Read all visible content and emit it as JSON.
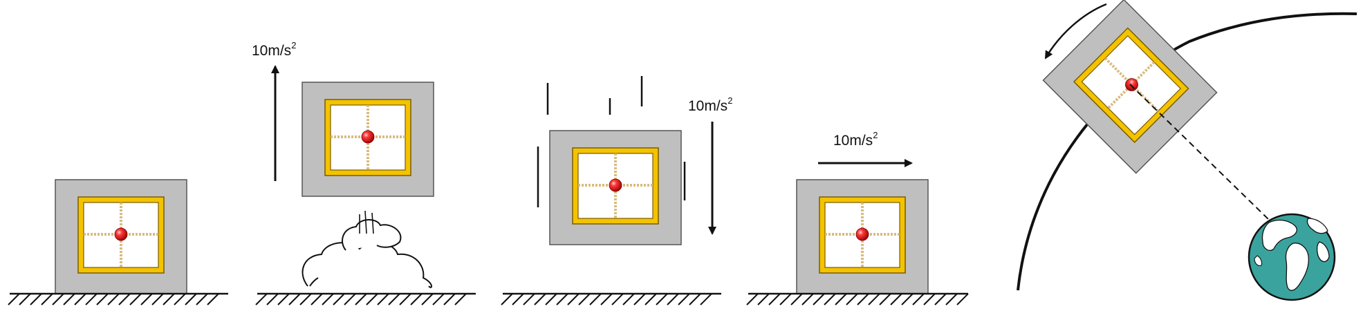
{
  "figure": {
    "panels": [
      {
        "id": "at-rest",
        "acceleration_label": null
      },
      {
        "id": "rocket-launch",
        "acceleration_label": {
          "base": "10m/s",
          "exponent": "2",
          "direction": "up"
        }
      },
      {
        "id": "free-fall",
        "acceleration_label": {
          "base": "10m/s",
          "exponent": "2",
          "direction": "down"
        }
      },
      {
        "id": "horizontal-acceleration",
        "acceleration_label": {
          "base": "10m/s",
          "exponent": "2",
          "direction": "right"
        }
      },
      {
        "id": "orbit",
        "acceleration_label": null
      }
    ],
    "colors": {
      "box_fill": "#bfbfbf",
      "frame_fill": "#f3c300",
      "frame_stroke": "#7a5a00",
      "spring": "#d8bb7e",
      "mass": "#e01515",
      "earth_ocean": "#3aa39e",
      "earth_land": "#ffffff",
      "ink": "#111111"
    },
    "icons": [
      "ground-hatch-icon",
      "smoke-cloud-icon",
      "motion-line-icon",
      "earth-globe-icon",
      "rotation-arrow-icon"
    ]
  }
}
